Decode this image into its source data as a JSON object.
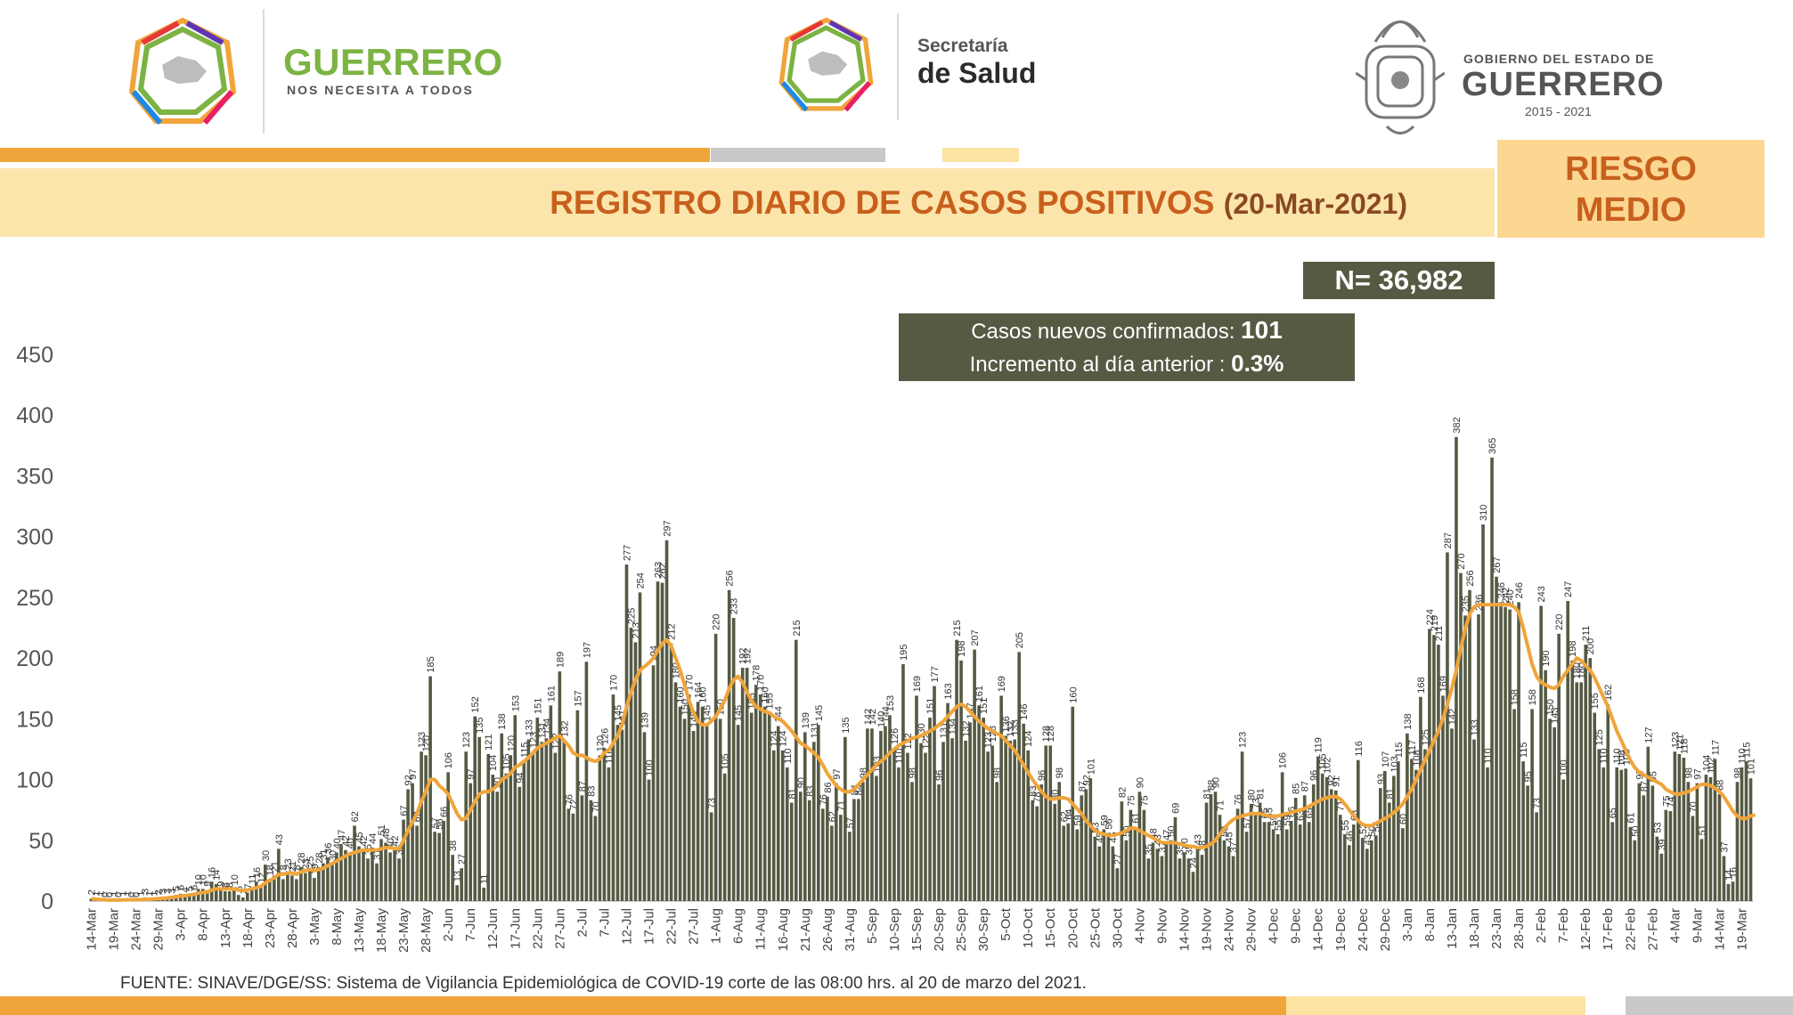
{
  "header": {
    "state_brand": "GUERRERO",
    "state_tagline": "NOS NECESITA A TODOS",
    "ministry_line1": "Secretaría",
    "ministry_line2": "de Salud",
    "gov_small": "GOBIERNO DEL ESTADO DE",
    "gov_name": "GUERRERO",
    "gov_years": "2015 - 2021"
  },
  "banner": {
    "title": "REGISTRO DIARIO DE CASOS POSITIVOS",
    "date": "(20-Mar-2021)",
    "risk_line1": "RIESGO",
    "risk_line2": "MEDIO"
  },
  "summary": {
    "total": "N= 36,982",
    "new_label": "Casos nuevos confirmados:",
    "new_value": "101",
    "increment_label": "Incremento al día anterior :",
    "increment_value": "0.3%"
  },
  "source": "FUENTE: SINAVE/DGE/SS: Sistema de Vigilancia Epidemiológica de COVID-19 corte de las 08:00 hrs. al 20 de marzo del 2021.",
  "colors": {
    "bar": "#555a43",
    "moving_average": "#f0a53a",
    "title_orange": "#c8601d",
    "banner_bg": "#fce5ab"
  },
  "chart_data": {
    "type": "bar",
    "overlay": "line (moving average)",
    "x_start": "14-Mar-2020",
    "x_end": "20-Mar-2021",
    "ylim": [
      0,
      450
    ],
    "yticks": [
      0,
      50,
      100,
      150,
      200,
      250,
      300,
      350,
      400,
      450
    ],
    "grid": false,
    "xtick_labels": [
      "14-Mar",
      "19-Mar",
      "24-Mar",
      "29-Mar",
      "3-Apr",
      "8-Apr",
      "13-Apr",
      "18-Apr",
      "23-Apr",
      "28-Apr",
      "3-May",
      "8-May",
      "13-May",
      "18-May",
      "23-May",
      "28-May",
      "2-Jun",
      "7-Jun",
      "12-Jun",
      "17-Jun",
      "22-Jun",
      "27-Jun",
      "2-Jul",
      "7-Jul",
      "12-Jul",
      "17-Jul",
      "22-Jul",
      "27-Jul",
      "1-Aug",
      "6-Aug",
      "11-Aug",
      "16-Aug",
      "21-Aug",
      "26-Aug",
      "31-Aug",
      "5-Sep",
      "10-Sep",
      "15-Sep",
      "20-Sep",
      "25-Sep",
      "30-Sep",
      "5-Oct",
      "10-Oct",
      "15-Oct",
      "20-Oct",
      "25-Oct",
      "30-Oct",
      "4-Nov",
      "9-Nov",
      "14-Nov",
      "19-Nov",
      "24-Nov",
      "29-Nov",
      "4-Dec",
      "9-Dec",
      "14-Dec",
      "19-Dec",
      "24-Dec",
      "29-Dec",
      "3-Jan",
      "8-Jan",
      "13-Jan",
      "18-Jan",
      "23-Jan",
      "28-Jan",
      "2-Feb",
      "7-Feb",
      "12-Feb",
      "17-Feb",
      "22-Feb",
      "27-Feb",
      "4-Mar",
      "9-Mar",
      "14-Mar",
      "19-Mar"
    ],
    "values": [
      2,
      1,
      1,
      0,
      0,
      1,
      0,
      1,
      1,
      0,
      0,
      1,
      3,
      1,
      1,
      2,
      3,
      3,
      3,
      5,
      6,
      4,
      5,
      6,
      10,
      10,
      9,
      16,
      14,
      9,
      8,
      8,
      10,
      5,
      3,
      7,
      11,
      16,
      12,
      30,
      18,
      21,
      43,
      18,
      23,
      21,
      18,
      28,
      23,
      25,
      19,
      28,
      31,
      36,
      30,
      40,
      47,
      42,
      40,
      62,
      45,
      42,
      35,
      44,
      31,
      51,
      48,
      40,
      42,
      35,
      67,
      92,
      97,
      62,
      123,
      120,
      185,
      57,
      56,
      66,
      106,
      38,
      13,
      27,
      123,
      97,
      152,
      135,
      11,
      121,
      104,
      90,
      138,
      105,
      120,
      153,
      94,
      115,
      133,
      123,
      151,
      131,
      134,
      161,
      122,
      189,
      132,
      76,
      72,
      157,
      87,
      197,
      83,
      70,
      120,
      126,
      110,
      170,
      145,
      141,
      277,
      225,
      213,
      254,
      139,
      100,
      194,
      263,
      262,
      297,
      212,
      180,
      160,
      150,
      170,
      140,
      164,
      160,
      145,
      73,
      220,
      150,
      105,
      256,
      233,
      145,
      192,
      192,
      155,
      178,
      170,
      160,
      155,
      124,
      144,
      124,
      110,
      81,
      215,
      90,
      139,
      83,
      131,
      145,
      76,
      86,
      62,
      97,
      71,
      135,
      57,
      84,
      84,
      98,
      142,
      142,
      103,
      140,
      144,
      153,
      126,
      110,
      195,
      122,
      98,
      169,
      130,
      122,
      151,
      177,
      96,
      131,
      163,
      134,
      215,
      198,
      132,
      147,
      207,
      161,
      151,
      123,
      128,
      98,
      169,
      136,
      132,
      133,
      205,
      146,
      124,
      83,
      78,
      96,
      128,
      128,
      80,
      98,
      62,
      64,
      160,
      59,
      87,
      92,
      101,
      53,
      45,
      59,
      56,
      45,
      27,
      82,
      50,
      75,
      61,
      90,
      75,
      35,
      48,
      43,
      37,
      47,
      50,
      69,
      35,
      40,
      35,
      24,
      43,
      38,
      81,
      88,
      90,
      71,
      50,
      45,
      37,
      76,
      123,
      57,
      80,
      73,
      81,
      65,
      65,
      59,
      55,
      106,
      59,
      66,
      85,
      63,
      87,
      65,
      96,
      119,
      105,
      102,
      92,
      91,
      71,
      55,
      46,
      63,
      116,
      52,
      43,
      50,
      54,
      93,
      107,
      81,
      103,
      115,
      60,
      138,
      117,
      108,
      168,
      125,
      224,
      219,
      211,
      169,
      287,
      142,
      382,
      270,
      235,
      256,
      133,
      236,
      310,
      110,
      365,
      267,
      246,
      242,
      240,
      158,
      246,
      115,
      95,
      158,
      73,
      243,
      190,
      150,
      143,
      220,
      100,
      247,
      198,
      180,
      180,
      211,
      200,
      155,
      125,
      110,
      162,
      65,
      110,
      108,
      109,
      61,
      50,
      97,
      87,
      127,
      95,
      53,
      39,
      75,
      74,
      123,
      121,
      118,
      98,
      70,
      97,
      51,
      104,
      102,
      117,
      88,
      37,
      14,
      16,
      98,
      110,
      115,
      101
    ],
    "moving_average": [
      2,
      1.5,
      1.3,
      1,
      0.8,
      0.8,
      0.7,
      0.9,
      1,
      1,
      1,
      1.2,
      1.4,
      1.5,
      1.7,
      2,
      2.3,
      2.6,
      3,
      3.5,
      4,
      4.5,
      5,
      5.5,
      6.5,
      7,
      7.5,
      9,
      10,
      10,
      10,
      10,
      10,
      9,
      8.5,
      9,
      10,
      11,
      12,
      15,
      17,
      19,
      22,
      22,
      23,
      23,
      22,
      24,
      25,
      26,
      25,
      26,
      27,
      29,
      31,
      33,
      35,
      37,
      39,
      40,
      41,
      42,
      42,
      42,
      42,
      43,
      44,
      44,
      43,
      43,
      50,
      58,
      65,
      72,
      82,
      90,
      100,
      100,
      95,
      92,
      88,
      80,
      72,
      67,
      68,
      75,
      82,
      88,
      90,
      90,
      92,
      95,
      100,
      102,
      105,
      110,
      112,
      115,
      118,
      122,
      126,
      128,
      130,
      132,
      134,
      136,
      132,
      128,
      122,
      120,
      120,
      118,
      116,
      115,
      117,
      122,
      124,
      130,
      136,
      145,
      160,
      172,
      182,
      190,
      193,
      196,
      200,
      206,
      212,
      215,
      210,
      200,
      190,
      178,
      165,
      155,
      148,
      145,
      145,
      148,
      152,
      158,
      165,
      175,
      182,
      185,
      180,
      172,
      165,
      160,
      158,
      156,
      155,
      152,
      150,
      148,
      144,
      140,
      135,
      130,
      128,
      125,
      122,
      118,
      112,
      105,
      100,
      95,
      92,
      90,
      90,
      92,
      96,
      100,
      104,
      108,
      112,
      115,
      118,
      122,
      125,
      128,
      130,
      132,
      134,
      135,
      136,
      138,
      140,
      142,
      145,
      148,
      152,
      156,
      160,
      162,
      160,
      156,
      152,
      148,
      145,
      142,
      140,
      138,
      136,
      132,
      128,
      124,
      118,
      112,
      106,
      100,
      95,
      90,
      86,
      84,
      84,
      85,
      85,
      84,
      80,
      76,
      72,
      66,
      62,
      58,
      56,
      55,
      54,
      54,
      55,
      56,
      58,
      60,
      60,
      58,
      56,
      54,
      52,
      50,
      48,
      48,
      48,
      48,
      47,
      46,
      45,
      45,
      44,
      44,
      45,
      47,
      50,
      55,
      60,
      64,
      67,
      69,
      70,
      71,
      72,
      72,
      72,
      71,
      70,
      70,
      70,
      71,
      72,
      73,
      74,
      75,
      76,
      78,
      80,
      82,
      84,
      85,
      86,
      86,
      84,
      80,
      75,
      70,
      66,
      63,
      62,
      62,
      64,
      66,
      68,
      70,
      73,
      76,
      80,
      86,
      92,
      100,
      108,
      116,
      124,
      132,
      140,
      150,
      162,
      175,
      190,
      208,
      224,
      236,
      242,
      244,
      244,
      244,
      244,
      244,
      244,
      244,
      244,
      242,
      238,
      225,
      210,
      195,
      185,
      180,
      178,
      176,
      175,
      178,
      185,
      190,
      195,
      200,
      198,
      194,
      190,
      184,
      176,
      168,
      160,
      150,
      140,
      132,
      124,
      116,
      110,
      106,
      104,
      102,
      100,
      98,
      96,
      92,
      90,
      88,
      88,
      89,
      90,
      92,
      94,
      96,
      96,
      95,
      93,
      90,
      86,
      80,
      74,
      70,
      68,
      68,
      70,
      71
    ]
  }
}
